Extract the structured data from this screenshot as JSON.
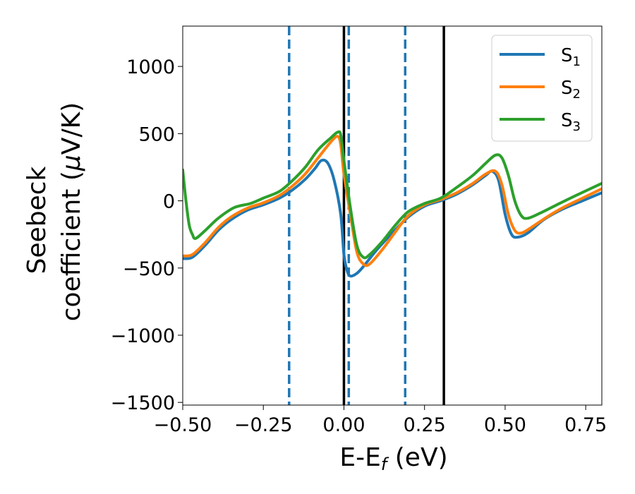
{
  "chart_data": {
    "type": "line",
    "xlabel": "E-E",
    "xlabel_sub": "f",
    "xlabel_unit": " (eV)",
    "ylabel_line1": "Seebeck",
    "ylabel_line2_prefix": "coefficient  (",
    "ylabel_mu": "μ",
    "ylabel_line2_suffix": "V/K)",
    "xlim": [
      -0.5,
      0.8
    ],
    "ylim": [
      -1520,
      1300
    ],
    "xticks": [
      {
        "value": -0.5,
        "label": "−0.50"
      },
      {
        "value": -0.25,
        "label": "−0.25"
      },
      {
        "value": 0.0,
        "label": "0.00"
      },
      {
        "value": 0.25,
        "label": "0.25"
      },
      {
        "value": 0.5,
        "label": "0.50"
      },
      {
        "value": 0.75,
        "label": "0.75"
      }
    ],
    "yticks": [
      {
        "value": 1000,
        "label": "1000"
      },
      {
        "value": 500,
        "label": "500"
      },
      {
        "value": 0,
        "label": "0"
      },
      {
        "value": -500,
        "label": "−500"
      },
      {
        "value": -1000,
        "label": "−1000"
      },
      {
        "value": -1500,
        "label": "−1500"
      }
    ],
    "grid": false,
    "legend_position": "top-right",
    "series": [
      {
        "name": "S",
        "subscript": "1",
        "color": "#1f77b4",
        "points": [
          [
            -0.5,
            -430
          ],
          [
            -0.47,
            -420
          ],
          [
            -0.43,
            -330
          ],
          [
            -0.39,
            -220
          ],
          [
            -0.35,
            -140
          ],
          [
            -0.3,
            -70
          ],
          [
            -0.25,
            -30
          ],
          [
            -0.2,
            20
          ],
          [
            -0.16,
            80
          ],
          [
            -0.12,
            160
          ],
          [
            -0.09,
            240
          ],
          [
            -0.07,
            300
          ],
          [
            -0.05,
            280
          ],
          [
            -0.03,
            150
          ],
          [
            -0.01,
            -100
          ],
          [
            0.0,
            -400
          ],
          [
            0.01,
            -520
          ],
          [
            0.02,
            -560
          ],
          [
            0.04,
            -540
          ],
          [
            0.06,
            -490
          ],
          [
            0.1,
            -370
          ],
          [
            0.15,
            -240
          ],
          [
            0.2,
            -120
          ],
          [
            0.25,
            -40
          ],
          [
            0.3,
            0
          ],
          [
            0.35,
            50
          ],
          [
            0.4,
            120
          ],
          [
            0.44,
            190
          ],
          [
            0.46,
            220
          ],
          [
            0.48,
            150
          ],
          [
            0.5,
            -100
          ],
          [
            0.52,
            -250
          ],
          [
            0.54,
            -270
          ],
          [
            0.57,
            -240
          ],
          [
            0.62,
            -140
          ],
          [
            0.68,
            -60
          ],
          [
            0.74,
            0
          ],
          [
            0.8,
            60
          ]
        ]
      },
      {
        "name": "S",
        "subscript": "2",
        "color": "#ff7f0e",
        "points": [
          [
            -0.5,
            -410
          ],
          [
            -0.47,
            -400
          ],
          [
            -0.43,
            -310
          ],
          [
            -0.39,
            -200
          ],
          [
            -0.35,
            -120
          ],
          [
            -0.3,
            -55
          ],
          [
            -0.25,
            -15
          ],
          [
            -0.2,
            40
          ],
          [
            -0.16,
            110
          ],
          [
            -0.12,
            200
          ],
          [
            -0.08,
            320
          ],
          [
            -0.04,
            440
          ],
          [
            -0.02,
            480
          ],
          [
            -0.01,
            420
          ],
          [
            0.0,
            200
          ],
          [
            0.02,
            -100
          ],
          [
            0.04,
            -380
          ],
          [
            0.06,
            -470
          ],
          [
            0.08,
            -470
          ],
          [
            0.12,
            -360
          ],
          [
            0.16,
            -230
          ],
          [
            0.2,
            -110
          ],
          [
            0.25,
            -30
          ],
          [
            0.3,
            10
          ],
          [
            0.35,
            60
          ],
          [
            0.4,
            130
          ],
          [
            0.44,
            200
          ],
          [
            0.47,
            220
          ],
          [
            0.49,
            120
          ],
          [
            0.51,
            -100
          ],
          [
            0.53,
            -220
          ],
          [
            0.55,
            -240
          ],
          [
            0.58,
            -200
          ],
          [
            0.63,
            -120
          ],
          [
            0.68,
            -50
          ],
          [
            0.74,
            20
          ],
          [
            0.8,
            90
          ]
        ]
      },
      {
        "name": "S",
        "subscript": "3",
        "color": "#2ca02c",
        "points": [
          [
            -0.5,
            230
          ],
          [
            -0.49,
            0
          ],
          [
            -0.48,
            -180
          ],
          [
            -0.47,
            -250
          ],
          [
            -0.46,
            -280
          ],
          [
            -0.43,
            -220
          ],
          [
            -0.39,
            -130
          ],
          [
            -0.34,
            -50
          ],
          [
            -0.29,
            -20
          ],
          [
            -0.25,
            20
          ],
          [
            -0.2,
            70
          ],
          [
            -0.16,
            150
          ],
          [
            -0.12,
            250
          ],
          [
            -0.08,
            380
          ],
          [
            -0.04,
            470
          ],
          [
            -0.02,
            510
          ],
          [
            -0.01,
            490
          ],
          [
            0.0,
            300
          ],
          [
            0.02,
            -50
          ],
          [
            0.04,
            -330
          ],
          [
            0.06,
            -420
          ],
          [
            0.08,
            -400
          ],
          [
            0.12,
            -300
          ],
          [
            0.16,
            -180
          ],
          [
            0.2,
            -80
          ],
          [
            0.25,
            -20
          ],
          [
            0.3,
            20
          ],
          [
            0.35,
            100
          ],
          [
            0.4,
            190
          ],
          [
            0.44,
            280
          ],
          [
            0.47,
            340
          ],
          [
            0.49,
            320
          ],
          [
            0.51,
            190
          ],
          [
            0.53,
            0
          ],
          [
            0.55,
            -110
          ],
          [
            0.57,
            -130
          ],
          [
            0.61,
            -90
          ],
          [
            0.66,
            -30
          ],
          [
            0.72,
            40
          ],
          [
            0.8,
            130
          ]
        ]
      }
    ],
    "vlines": [
      {
        "x": -0.17,
        "style": "dashed",
        "color": "#1f77b4"
      },
      {
        "x": 0.015,
        "style": "dashed",
        "color": "#1f77b4"
      },
      {
        "x": 0.19,
        "style": "dashed",
        "color": "#1f77b4"
      },
      {
        "x": 0.0,
        "style": "solid",
        "color": "#000000"
      },
      {
        "x": 0.31,
        "style": "solid",
        "color": "#000000"
      }
    ]
  }
}
